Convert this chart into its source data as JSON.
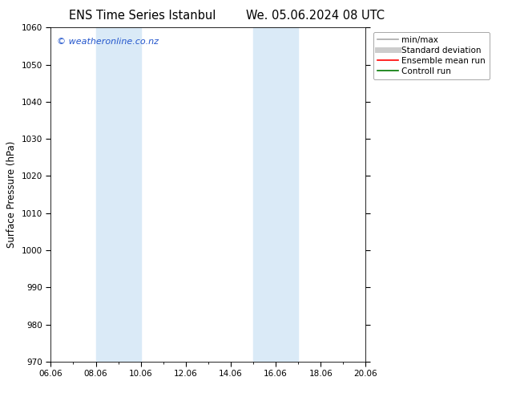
{
  "title_left": "ENS Time Series Istanbul",
  "title_right": "We. 05.06.2024 08 UTC",
  "ylabel": "Surface Pressure (hPa)",
  "ylim": [
    970,
    1060
  ],
  "yticks": [
    970,
    980,
    990,
    1000,
    1010,
    1020,
    1030,
    1040,
    1050,
    1060
  ],
  "xlim_start": 0.0,
  "xlim_end": 14.0,
  "xtick_positions": [
    0,
    2,
    4,
    6,
    8,
    10,
    12,
    14
  ],
  "xtick_labels": [
    "06.06",
    "08.06",
    "10.06",
    "12.06",
    "14.06",
    "16.06",
    "18.06",
    "20.06"
  ],
  "blue_bands": [
    {
      "x_start": 2.0,
      "x_end": 4.0
    },
    {
      "x_start": 9.0,
      "x_end": 11.0
    }
  ],
  "blue_band_color": "#daeaf7",
  "watermark_text": "© weatheronline.co.nz",
  "watermark_color": "#2255cc",
  "legend_items": [
    {
      "label": "min/max",
      "color": "#aaaaaa",
      "lw": 1.2
    },
    {
      "label": "Standard deviation",
      "color": "#cccccc",
      "lw": 5
    },
    {
      "label": "Ensemble mean run",
      "color": "#ff0000",
      "lw": 1.2
    },
    {
      "label": "Controll run",
      "color": "#007700",
      "lw": 1.2
    }
  ],
  "bg_color": "#ffffff",
  "title_fontsize": 10.5,
  "tick_fontsize": 7.5,
  "ylabel_fontsize": 8.5,
  "legend_fontsize": 7.5,
  "watermark_fontsize": 8
}
